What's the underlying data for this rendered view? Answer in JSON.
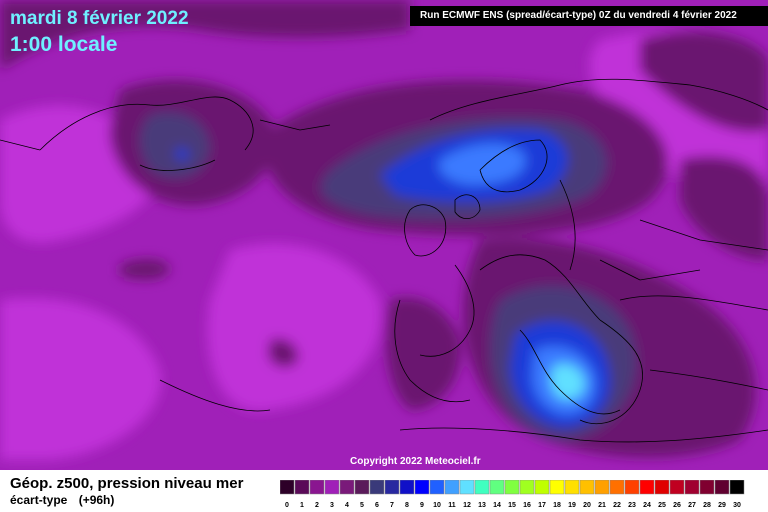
{
  "header": {
    "date": "mardi 8 février 2022",
    "time": "1:00 locale"
  },
  "run_info": "Run ECMWF ENS (spread/écart-type) 0Z du vendredi 4 février 2022",
  "copyright": "Copyright 2022 Meteociel.fr",
  "legend": {
    "title": "Géop. z500, pression niveau mer",
    "subtitle": "écart-type",
    "lead_time": "(+96h)",
    "scale_labels": [
      "0",
      "1",
      "2",
      "3",
      "4",
      "5",
      "6",
      "7",
      "8",
      "9",
      "10",
      "11",
      "12",
      "13",
      "14",
      "15",
      "16",
      "17",
      "18",
      "19",
      "20",
      "21",
      "22",
      "23",
      "24",
      "25",
      "26",
      "27",
      "28",
      "29",
      "30"
    ],
    "scale_colors": [
      "#2d0028",
      "#5a0a58",
      "#8a1690",
      "#a020b8",
      "#7a1a7a",
      "#5a1a5a",
      "#3a3a7a",
      "#2828a0",
      "#1010c8",
      "#0000ff",
      "#2060ff",
      "#40a0ff",
      "#60e0ff",
      "#40ffc0",
      "#60ff80",
      "#80ff40",
      "#a0ff20",
      "#c0ff00",
      "#ffff00",
      "#ffe000",
      "#ffc000",
      "#ffa000",
      "#ff7000",
      "#ff4000",
      "#ff0000",
      "#e00000",
      "#c00020",
      "#a00030",
      "#800030",
      "#600030",
      "#000000"
    ]
  },
  "map_colors": {
    "background": "#a020b8",
    "magenta": "#c030d8",
    "dark_purple": "#6a1670",
    "slate": "#4a3a7a",
    "blue": "#1a3ad8",
    "light_blue": "#3a7aff",
    "cyan": "#60e0ff",
    "coast": "#000000"
  }
}
